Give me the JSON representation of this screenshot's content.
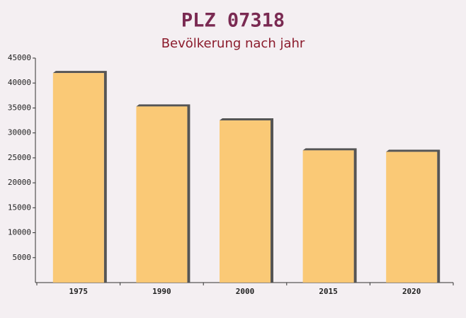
{
  "chart_data": {
    "type": "bar",
    "title": "PLZ 07318",
    "subtitle": "Bevölkerung nach jahr",
    "categories": [
      "1975",
      "1990",
      "2000",
      "2015",
      "2020"
    ],
    "values": [
      42000,
      35300,
      32500,
      26500,
      26200
    ],
    "color": "#fbc468",
    "ylim": [
      0,
      45000
    ],
    "yticks": [
      5000,
      10000,
      15000,
      20000,
      25000,
      30000,
      35000,
      40000,
      45000
    ]
  }
}
